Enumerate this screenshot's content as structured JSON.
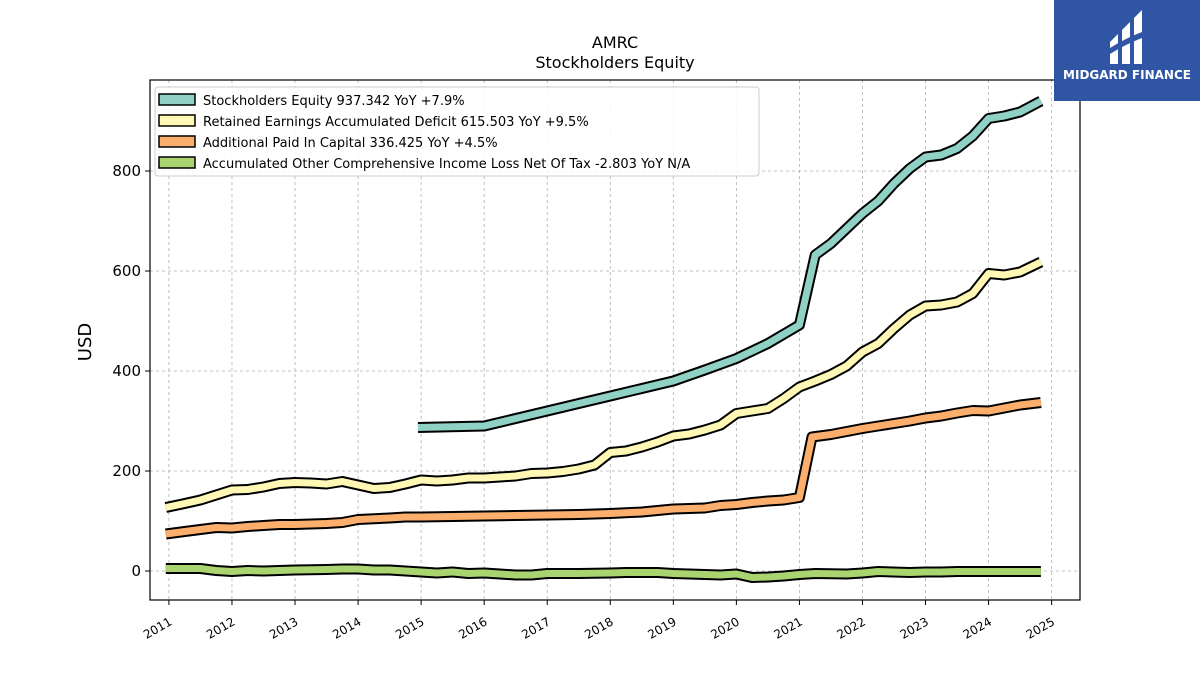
{
  "brand": {
    "name": "MIDGARD FINANCE",
    "bg_color": "#2f55a4"
  },
  "chart_data": {
    "type": "line",
    "title": "AMRC",
    "subtitle": "Stockholders  Equity",
    "ylabel": "USD",
    "xlabel": "",
    "ylim": [
      -58,
      982
    ],
    "xlim": [
      2010.7,
      2025.45
    ],
    "yticks": [
      0,
      200,
      400,
      600,
      800
    ],
    "xticks": [
      "2011",
      "2012",
      "2013",
      "2014",
      "2015",
      "2016",
      "2017",
      "2018",
      "2019",
      "2020",
      "2021",
      "2022",
      "2023",
      "2024",
      "2025"
    ],
    "grid": true,
    "legend_position": "top-left",
    "series": [
      {
        "name": "Stockholders Equity  937.342 YoY +7.9%",
        "color": "#8fd1c4",
        "x": [
          2014.95,
          2016.0,
          2016.5,
          2017.0,
          2017.5,
          2018.0,
          2018.5,
          2019.0,
          2019.5,
          2020.0,
          2020.5,
          2021.0,
          2021.25,
          2021.5,
          2021.75,
          2022.0,
          2022.25,
          2022.5,
          2022.75,
          2023.0,
          2023.25,
          2023.5,
          2023.75,
          2024.0,
          2024.25,
          2024.5,
          2024.83
        ],
        "y": [
          287,
          290,
          305,
          320,
          335,
          350,
          365,
          380,
          402,
          425,
          455,
          492,
          632,
          655,
          685,
          715,
          740,
          775,
          805,
          828,
          832,
          845,
          870,
          905,
          910,
          918,
          940
        ]
      },
      {
        "name": "Retained Earnings Accumulated Deficit  615.503 YoY +9.5%",
        "color": "#fff8b4",
        "x": [
          2010.95,
          2011.25,
          2011.5,
          2011.75,
          2012.0,
          2012.25,
          2012.5,
          2012.75,
          2013.0,
          2013.25,
          2013.5,
          2013.75,
          2014.0,
          2014.25,
          2014.5,
          2014.75,
          2015.0,
          2015.25,
          2015.5,
          2015.75,
          2016.0,
          2016.25,
          2016.5,
          2016.75,
          2017.0,
          2017.25,
          2017.5,
          2017.75,
          2018.0,
          2018.25,
          2018.5,
          2018.75,
          2019.0,
          2019.25,
          2019.5,
          2019.75,
          2020.0,
          2020.25,
          2020.5,
          2020.75,
          2021.0,
          2021.25,
          2021.5,
          2021.75,
          2022.0,
          2022.25,
          2022.5,
          2022.75,
          2023.0,
          2023.25,
          2023.5,
          2023.75,
          2024.0,
          2024.25,
          2024.5,
          2024.83
        ],
        "y": [
          127,
          135,
          142,
          152,
          162,
          163,
          168,
          175,
          177,
          176,
          174,
          179,
          172,
          165,
          167,
          174,
          182,
          180,
          182,
          186,
          186,
          188,
          190,
          195,
          196,
          199,
          204,
          212,
          237,
          240,
          248,
          258,
          270,
          274,
          282,
          292,
          315,
          320,
          325,
          345,
          368,
          380,
          393,
          410,
          438,
          455,
          485,
          512,
          530,
          532,
          538,
          555,
          595,
          592,
          598,
          618
        ]
      },
      {
        "name": "Additional Paid In Capital  336.425 YoY +4.5%",
        "color": "#fcae6c",
        "x": [
          2010.95,
          2011.25,
          2011.5,
          2011.75,
          2012.0,
          2012.25,
          2012.5,
          2012.75,
          2013.0,
          2013.5,
          2013.75,
          2014.0,
          2014.5,
          2014.75,
          2015.0,
          2015.5,
          2016.0,
          2016.5,
          2017.0,
          2017.5,
          2018.0,
          2018.5,
          2019.0,
          2019.5,
          2019.75,
          2020.0,
          2020.25,
          2020.5,
          2020.75,
          2021.0,
          2021.2,
          2021.5,
          2021.75,
          2022.0,
          2022.25,
          2022.5,
          2022.75,
          2023.0,
          2023.25,
          2023.5,
          2023.75,
          2024.0,
          2024.25,
          2024.5,
          2024.83
        ],
        "y": [
          74,
          79,
          83,
          87,
          86,
          89,
          91,
          93,
          93,
          95,
          97,
          103,
          106,
          108,
          108,
          109,
          110,
          111,
          112,
          113,
          115,
          118,
          124,
          126,
          131,
          133,
          137,
          140,
          142,
          147,
          268,
          273,
          279,
          285,
          290,
          295,
          300,
          306,
          310,
          316,
          321,
          320,
          326,
          332,
          337
        ]
      },
      {
        "name": "Accumulated Other Comprehensive Income Loss Net Of Tax  -2.803 YoY N/A",
        "color": "#a9d46f",
        "x": [
          2010.95,
          2011.5,
          2011.75,
          2012.0,
          2012.25,
          2012.5,
          2013.0,
          2013.5,
          2013.75,
          2014.0,
          2014.25,
          2014.5,
          2014.75,
          2015.0,
          2015.25,
          2015.5,
          2015.75,
          2016.0,
          2016.25,
          2016.5,
          2016.75,
          2017.0,
          2017.5,
          2018.0,
          2018.25,
          2018.75,
          2019.0,
          2019.5,
          2019.75,
          2020.0,
          2020.25,
          2020.5,
          2020.75,
          2021.0,
          2021.25,
          2021.75,
          2022.0,
          2022.25,
          2022.75,
          2023.0,
          2023.25,
          2023.5,
          2023.75,
          2024.0,
          2024.5,
          2024.83
        ],
        "y": [
          5,
          5,
          1,
          -1,
          1,
          0,
          2,
          3,
          4,
          4,
          2,
          2,
          0,
          -2,
          -4,
          -2,
          -5,
          -4,
          -6,
          -8,
          -8,
          -5,
          -5,
          -4,
          -3,
          -3,
          -5,
          -7,
          -8,
          -6,
          -13,
          -12,
          -10,
          -7,
          -5,
          -6,
          -4,
          -1,
          -3,
          -2,
          -2,
          -1,
          -1,
          -1,
          -1,
          -1
        ]
      }
    ]
  }
}
